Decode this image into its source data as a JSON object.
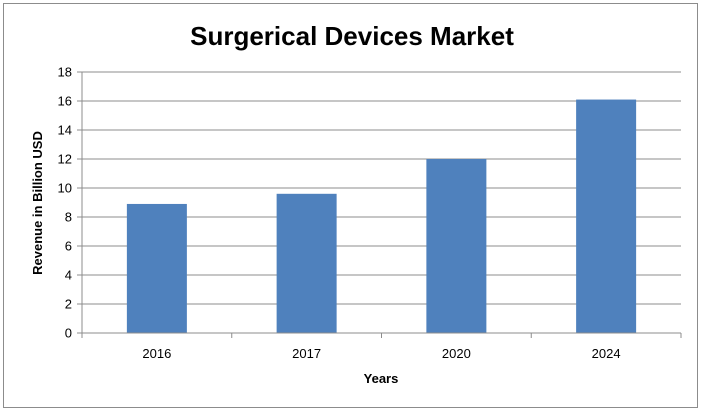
{
  "chart_data": {
    "type": "bar",
    "title": "Surgerical Devices Market",
    "xlabel": "Years",
    "ylabel": "Revenue in Billion USD",
    "categories": [
      "2016",
      "2017",
      "2020",
      "2024"
    ],
    "values": [
      8.9,
      9.6,
      12.0,
      16.1
    ],
    "ylim": [
      0,
      18
    ],
    "yticks": [
      0,
      2,
      4,
      6,
      8,
      10,
      12,
      14,
      16,
      18
    ],
    "grid": true,
    "legend": "none",
    "bar_color": "#4f81bd"
  }
}
